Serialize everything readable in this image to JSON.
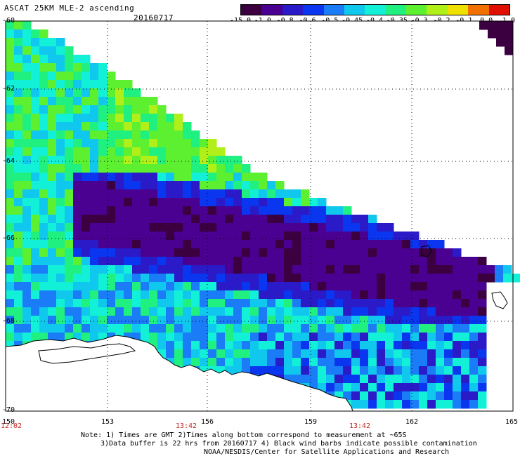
{
  "title": "ASCAT 25KM MLE-2 ascending",
  "date": "20160717",
  "colorbar": {
    "labels": [
      "-15.0",
      "-1.0",
      "-0.8",
      "-0.6",
      "-0.5",
      "-0.45",
      "-0.4",
      "-0.35",
      "-0.3",
      "-0.2",
      "-0.1",
      "0.0",
      "1.0"
    ],
    "colors": [
      "#3a0040",
      "#4a0090",
      "#2a1ac8",
      "#0a36f0",
      "#1a7cf6",
      "#10c8ee",
      "#12f0d8",
      "#20f080",
      "#5cf030",
      "#b0f018",
      "#f0e000",
      "#f07000",
      "#e01000"
    ]
  },
  "axes": {
    "lat_labels": [
      "-60",
      "-62",
      "-64",
      "-66",
      "-68",
      "-70"
    ],
    "lon_labels": [
      "150",
      "153",
      "156",
      "159",
      "162",
      "165"
    ],
    "time_labels": [
      "12:02",
      "13:42",
      "13:42"
    ]
  },
  "notes": {
    "line1": "Note: 1) Times are GMT 2)Times along bottom correspond to measurement at ~65S",
    "line2": "3)Data buffer is 22 hrs from 20160717 4) Black wind barbs indicate possible contamination",
    "line3": "NOAA/NESDIS/Center for Satellite Applications and Research"
  }
}
